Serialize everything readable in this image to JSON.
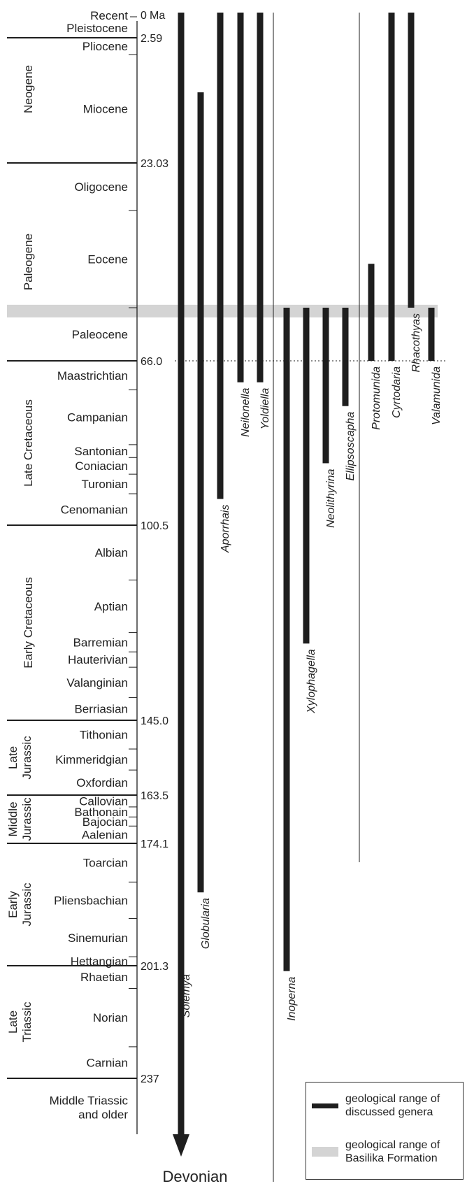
{
  "units_label": "Ma",
  "devonian_label": "Devonian",
  "colors": {
    "bar": "#1e1e1e",
    "basilika_band": "#d4d4d4",
    "line": "#1e1e1e"
  },
  "chart_data": {
    "type": "range-chart",
    "axis": "geologic time (Ma)",
    "ages": [
      {
        "age": 0,
        "label": "0"
      },
      {
        "age": 2.59,
        "label": "2.59"
      },
      {
        "age": 23.03,
        "label": "23.03"
      },
      {
        "age": 66.0,
        "label": "66.0"
      },
      {
        "age": 100.5,
        "label": "100.5"
      },
      {
        "age": 145.0,
        "label": "145.0"
      },
      {
        "age": 163.5,
        "label": "163.5"
      },
      {
        "age": 174.1,
        "label": "174.1"
      },
      {
        "age": 201.3,
        "label": "201.3"
      },
      {
        "age": 237,
        "label": "237"
      }
    ],
    "stages": [
      {
        "name": "Recent",
        "top": 0,
        "base": 0
      },
      {
        "name": "Pleistocene",
        "top": 0,
        "base": 2.59
      },
      {
        "name": "Pliocene",
        "top": 2.59,
        "base": 5.33
      },
      {
        "name": "Miocene",
        "top": 5.33,
        "base": 23.03
      },
      {
        "name": "Oligocene",
        "top": 23.03,
        "base": 33.9
      },
      {
        "name": "Eocene",
        "top": 33.9,
        "base": 56.0
      },
      {
        "name": "Paleocene",
        "top": 56.0,
        "base": 66.0
      },
      {
        "name": "Maastrichtian",
        "top": 66.0,
        "base": 72.1
      },
      {
        "name": "Campanian",
        "top": 72.1,
        "base": 83.6
      },
      {
        "name": "Santonian",
        "top": 83.6,
        "base": 86.3
      },
      {
        "name": "Coniacian",
        "top": 86.3,
        "base": 89.8
      },
      {
        "name": "Turonian",
        "top": 89.8,
        "base": 93.9
      },
      {
        "name": "Cenomanian",
        "top": 93.9,
        "base": 100.5
      },
      {
        "name": "Albian",
        "top": 100.5,
        "base": 113.0
      },
      {
        "name": "Aptian",
        "top": 113.0,
        "base": 125.0
      },
      {
        "name": "Barremian",
        "top": 125.0,
        "base": 129.4
      },
      {
        "name": "Hauterivian",
        "top": 129.4,
        "base": 132.9
      },
      {
        "name": "Valanginian",
        "top": 132.9,
        "base": 139.8
      },
      {
        "name": "Berriasian",
        "top": 139.8,
        "base": 145.0
      },
      {
        "name": "Tithonian",
        "top": 145.0,
        "base": 152.1
      },
      {
        "name": "Kimmeridgian",
        "top": 152.1,
        "base": 157.3
      },
      {
        "name": "Oxfordian",
        "top": 157.3,
        "base": 163.5
      },
      {
        "name": "Callovian",
        "top": 163.5,
        "base": 166.1
      },
      {
        "name": "Bathonain",
        "top": 166.1,
        "base": 168.3
      },
      {
        "name": "Bajocian",
        "top": 168.3,
        "base": 170.3
      },
      {
        "name": "Aalenian",
        "top": 170.3,
        "base": 174.1
      },
      {
        "name": "Toarcian",
        "top": 174.1,
        "base": 182.7
      },
      {
        "name": "Pliensbachian",
        "top": 182.7,
        "base": 190.8
      },
      {
        "name": "Sinemurian",
        "top": 190.8,
        "base": 199.3
      },
      {
        "name": "Hettangian",
        "top": 199.3,
        "base": 201.3
      },
      {
        "name": "Rhaetian",
        "top": 201.3,
        "base": 208.5
      },
      {
        "name": "Norian",
        "top": 208.5,
        "base": 227.0
      },
      {
        "name": "Carnian",
        "top": 227.0,
        "base": 237.0
      },
      {
        "name": "Middle Triassic\nand older",
        "top": 237.0,
        "base": 243.0
      }
    ],
    "periods": [
      {
        "name": "Neogene",
        "top": 0,
        "base": 23.03
      },
      {
        "name": "Paleogene",
        "top": 23.03,
        "base": 66.0
      },
      {
        "name": "Late Cretaceous",
        "top": 66.0,
        "base": 100.5
      },
      {
        "name": "Early Cretaceous",
        "top": 100.5,
        "base": 145.0
      },
      {
        "name": "Late\nJurassic",
        "top": 145.0,
        "base": 163.5
      },
      {
        "name": "Middle\nJurassic",
        "top": 163.5,
        "base": 174.1
      },
      {
        "name": "Early\nJurassic",
        "top": 174.1,
        "base": 201.3
      },
      {
        "name": "Late\nTriassic",
        "top": 201.3,
        "base": 237.0
      }
    ],
    "basilika_formation": {
      "top": 55.5,
      "base": 57.2
    },
    "genera": [
      {
        "name": "Solemya",
        "top": 0,
        "base": 243.0,
        "extends_to": "Devonian"
      },
      {
        "name": "Globularia",
        "top": 11.5,
        "base": 185.0
      },
      {
        "name": "Aporrhais",
        "top": 0,
        "base": 95.0
      },
      {
        "name": "Neilonella",
        "top": 0,
        "base": 70.5
      },
      {
        "name": "Yoldiella",
        "top": 0,
        "base": 70.5
      },
      {
        "name": "Inoperna",
        "top": 56.0,
        "base": 203.0
      },
      {
        "name": "Xylophagella",
        "top": 56.0,
        "base": 127.5
      },
      {
        "name": "Neolithyrina",
        "top": 56.0,
        "base": 87.5
      },
      {
        "name": "Ellipsoscapha",
        "top": 56.0,
        "base": 75.5
      },
      {
        "name": "Protomunida",
        "top": 46.0,
        "base": 66.0
      },
      {
        "name": "Cyrtodaria",
        "top": 0,
        "base": 66.0
      },
      {
        "name": "Rhacothyas",
        "top": 0,
        "base": 56.0
      },
      {
        "name": "Valamunida",
        "top": 56.0,
        "base": 66.0
      }
    ]
  },
  "legend": {
    "genera_label": "geological range of discussed genera",
    "basilika_label": "geological range of Basilika Formation"
  }
}
